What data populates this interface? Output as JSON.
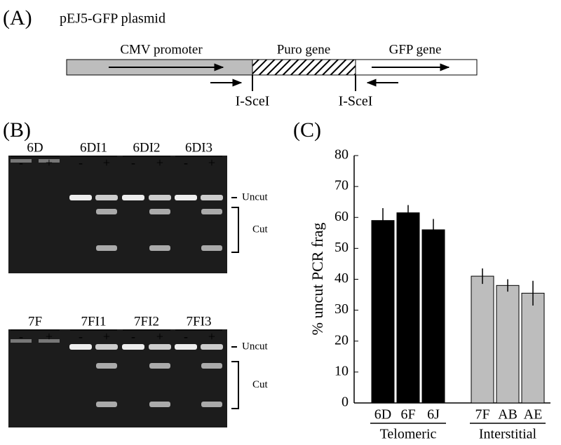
{
  "panel_a": {
    "label": "(A)",
    "title": "pEJ5-GFP plasmid",
    "segments": [
      "CMV promoter",
      "Puro gene",
      "GFP gene"
    ],
    "sites": [
      "I-SceI",
      "I-SceI"
    ]
  },
  "panel_b": {
    "label": "(B)",
    "gels": [
      {
        "lanes": [
          {
            "name": "6D",
            "signs": [
              "-",
              "+"
            ]
          },
          {
            "name": "6DI1",
            "signs": [
              "-",
              "+"
            ]
          },
          {
            "name": "6DI2",
            "signs": [
              "-",
              "+"
            ]
          },
          {
            "name": "6DI3",
            "signs": [
              "-",
              "+"
            ]
          }
        ],
        "uncut": "Uncut",
        "cut": "Cut"
      },
      {
        "lanes": [
          {
            "name": "7F",
            "signs": [
              "-",
              "+"
            ]
          },
          {
            "name": "7FI1",
            "signs": [
              "-",
              "+"
            ]
          },
          {
            "name": "7FI2",
            "signs": [
              "-",
              "+"
            ]
          },
          {
            "name": "7FI3",
            "signs": [
              "-",
              "+"
            ]
          }
        ],
        "uncut": "Uncut",
        "cut": "Cut"
      }
    ]
  },
  "chart_data": {
    "type": "bar",
    "panel_label": "(C)",
    "ylabel": "% uncut PCR frag",
    "ylim": [
      0,
      80
    ],
    "yticks": [
      0,
      10,
      20,
      30,
      40,
      50,
      60,
      70,
      80
    ],
    "groups": [
      {
        "name": "Telomeric",
        "color": "#000000",
        "categories": [
          "6D",
          "6F",
          "6J"
        ],
        "values": [
          59,
          61.5,
          56
        ],
        "errors": [
          4,
          2.5,
          3.5
        ]
      },
      {
        "name": "Interstitial",
        "color": "#bdbdbd",
        "categories": [
          "7F",
          "AB",
          "AE"
        ],
        "values": [
          41,
          38,
          35.5
        ],
        "errors": [
          2.5,
          2,
          4
        ]
      }
    ]
  }
}
